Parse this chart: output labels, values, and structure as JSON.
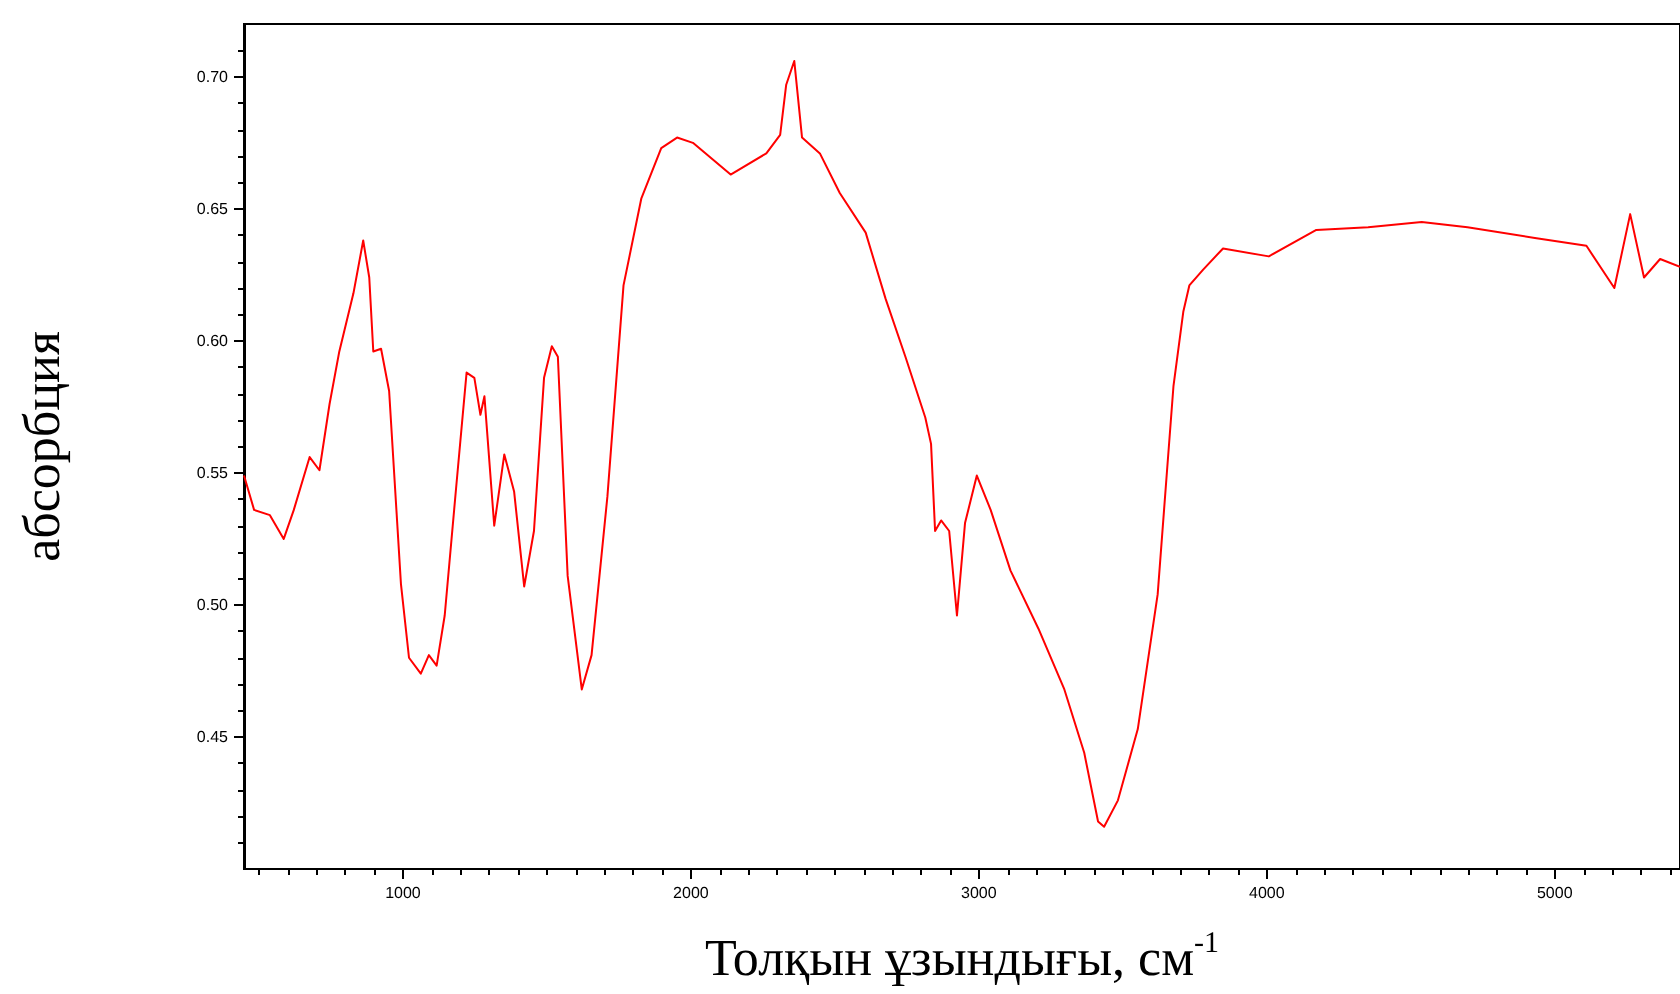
{
  "chart_data": {
    "type": "line",
    "xlabel": "Толқын ұзындығы, см$^{-1}$",
    "ylabel": "абсорбция",
    "xlim": [
      448,
      5435
    ],
    "xticks": [
      1000,
      2000,
      3000,
      4000,
      5000
    ],
    "ylim": [
      0.4,
      0.72
    ],
    "yticks": [
      {
        "value": 0.45,
        "label": "0.45"
      },
      {
        "value": 0.5,
        "label": "0.50"
      },
      {
        "value": 0.55,
        "label": "0.55"
      },
      {
        "value": 0.6,
        "label": "0.60"
      },
      {
        "value": 0.65,
        "label": "0.65"
      },
      {
        "value": 0.7,
        "label": "0.70"
      }
    ],
    "grid": false,
    "marker": "none",
    "line_style": "solid",
    "series": [
      {
        "color": "#ff0000",
        "x": [
          448,
          483,
          538,
          586,
          621,
          676,
          710,
          745,
          779,
          828,
          862,
          883,
          897,
          924,
          952,
          993,
          1021,
          1062,
          1090,
          1117,
          1145,
          1186,
          1221,
          1248,
          1269,
          1283,
          1317,
          1352,
          1386,
          1421,
          1455,
          1490,
          1517,
          1538,
          1572,
          1621,
          1655,
          1710,
          1766,
          1828,
          1897,
          1952,
          2007,
          2138,
          2262,
          2310,
          2331,
          2359,
          2386,
          2448,
          2517,
          2607,
          2676,
          2745,
          2814,
          2834,
          2848,
          2869,
          2897,
          2924,
          2952,
          2993,
          3041,
          3110,
          3207,
          3297,
          3366,
          3414,
          3435,
          3483,
          3552,
          3621,
          3655,
          3676,
          3710,
          3731,
          3779,
          3848,
          4007,
          4172,
          4352,
          4538,
          4697,
          4931,
          5110,
          5207,
          5262,
          5310,
          5366,
          5435
        ],
        "values": [
          0.549,
          0.536,
          0.534,
          0.525,
          0.536,
          0.556,
          0.551,
          0.576,
          0.596,
          0.618,
          0.638,
          0.624,
          0.596,
          0.597,
          0.581,
          0.508,
          0.48,
          0.474,
          0.481,
          0.477,
          0.496,
          0.546,
          0.588,
          0.586,
          0.572,
          0.579,
          0.53,
          0.557,
          0.543,
          0.507,
          0.528,
          0.586,
          0.598,
          0.594,
          0.511,
          0.468,
          0.481,
          0.541,
          0.621,
          0.654,
          0.673,
          0.677,
          0.675,
          0.663,
          0.671,
          0.678,
          0.697,
          0.706,
          0.677,
          0.671,
          0.656,
          0.641,
          0.616,
          0.594,
          0.571,
          0.561,
          0.528,
          0.532,
          0.528,
          0.496,
          0.531,
          0.549,
          0.536,
          0.513,
          0.491,
          0.468,
          0.444,
          0.418,
          0.416,
          0.426,
          0.453,
          0.504,
          0.553,
          0.583,
          0.611,
          0.621,
          0.627,
          0.635,
          0.632,
          0.642,
          0.643,
          0.645,
          0.643,
          0.639,
          0.636,
          0.62,
          0.648,
          0.624,
          0.631,
          0.628
        ]
      }
    ]
  }
}
